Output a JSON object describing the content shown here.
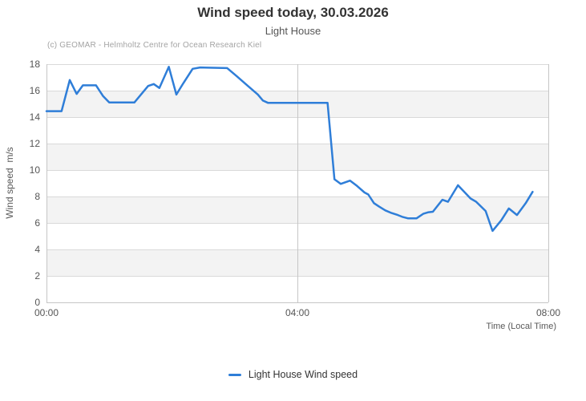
{
  "chart_data": {
    "type": "line",
    "title": "Wind speed today, 30.03.2026",
    "subtitle": "Light House",
    "credits": "(c) GEOMAR - Helmholtz Centre for Ocean Research Kiel",
    "xlabel": "Time (Local Time)",
    "ylabel": "Wind speed  m/s",
    "xlim": [
      0,
      8
    ],
    "ylim": [
      0,
      18
    ],
    "x_ticks": [
      {
        "value": 0,
        "label": "00:00"
      },
      {
        "value": 4,
        "label": "04:00"
      },
      {
        "value": 8,
        "label": "08:00"
      }
    ],
    "y_ticks": [
      0,
      2,
      4,
      6,
      8,
      10,
      12,
      14,
      16,
      18
    ],
    "alternate_bands": [
      [
        2,
        4
      ],
      [
        6,
        8
      ],
      [
        10,
        12
      ],
      [
        14,
        16
      ]
    ],
    "colors": {
      "series_blue": "#2f7ed8",
      "band_gray": "#f3f3f3",
      "grid_line": "#d9d9d9",
      "axis_line": "#c6c6c6"
    },
    "grid": true,
    "legend_position": "bottom-center",
    "series": [
      {
        "name": "Light House Wind speed",
        "color": "#2f7ed8",
        "points_time_hours_vs_mps": [
          [
            0.0,
            14.45
          ],
          [
            0.24,
            14.45
          ],
          [
            0.37,
            16.8
          ],
          [
            0.48,
            15.75
          ],
          [
            0.58,
            16.4
          ],
          [
            0.79,
            16.4
          ],
          [
            0.9,
            15.6
          ],
          [
            1.0,
            15.1
          ],
          [
            1.4,
            15.1
          ],
          [
            1.62,
            16.35
          ],
          [
            1.71,
            16.5
          ],
          [
            1.8,
            16.2
          ],
          [
            1.95,
            17.8
          ],
          [
            2.07,
            15.7
          ],
          [
            2.18,
            16.55
          ],
          [
            2.33,
            17.65
          ],
          [
            2.45,
            17.75
          ],
          [
            2.88,
            17.7
          ],
          [
            3.03,
            17.1
          ],
          [
            3.2,
            16.4
          ],
          [
            3.37,
            15.7
          ],
          [
            3.45,
            15.25
          ],
          [
            3.53,
            15.08
          ],
          [
            4.48,
            15.08
          ],
          [
            4.59,
            9.3
          ],
          [
            4.69,
            8.95
          ],
          [
            4.84,
            9.2
          ],
          [
            4.95,
            8.8
          ],
          [
            5.07,
            8.3
          ],
          [
            5.13,
            8.15
          ],
          [
            5.22,
            7.5
          ],
          [
            5.3,
            7.25
          ],
          [
            5.4,
            6.95
          ],
          [
            5.5,
            6.75
          ],
          [
            5.6,
            6.6
          ],
          [
            5.68,
            6.45
          ],
          [
            5.76,
            6.35
          ],
          [
            5.9,
            6.35
          ],
          [
            6.01,
            6.7
          ],
          [
            6.08,
            6.8
          ],
          [
            6.16,
            6.85
          ],
          [
            6.31,
            7.75
          ],
          [
            6.4,
            7.6
          ],
          [
            6.56,
            8.85
          ],
          [
            6.76,
            7.85
          ],
          [
            6.85,
            7.6
          ],
          [
            7.0,
            6.9
          ],
          [
            7.11,
            5.4
          ],
          [
            7.25,
            6.2
          ],
          [
            7.37,
            7.1
          ],
          [
            7.5,
            6.6
          ],
          [
            7.64,
            7.5
          ],
          [
            7.75,
            8.35
          ]
        ]
      }
    ]
  }
}
